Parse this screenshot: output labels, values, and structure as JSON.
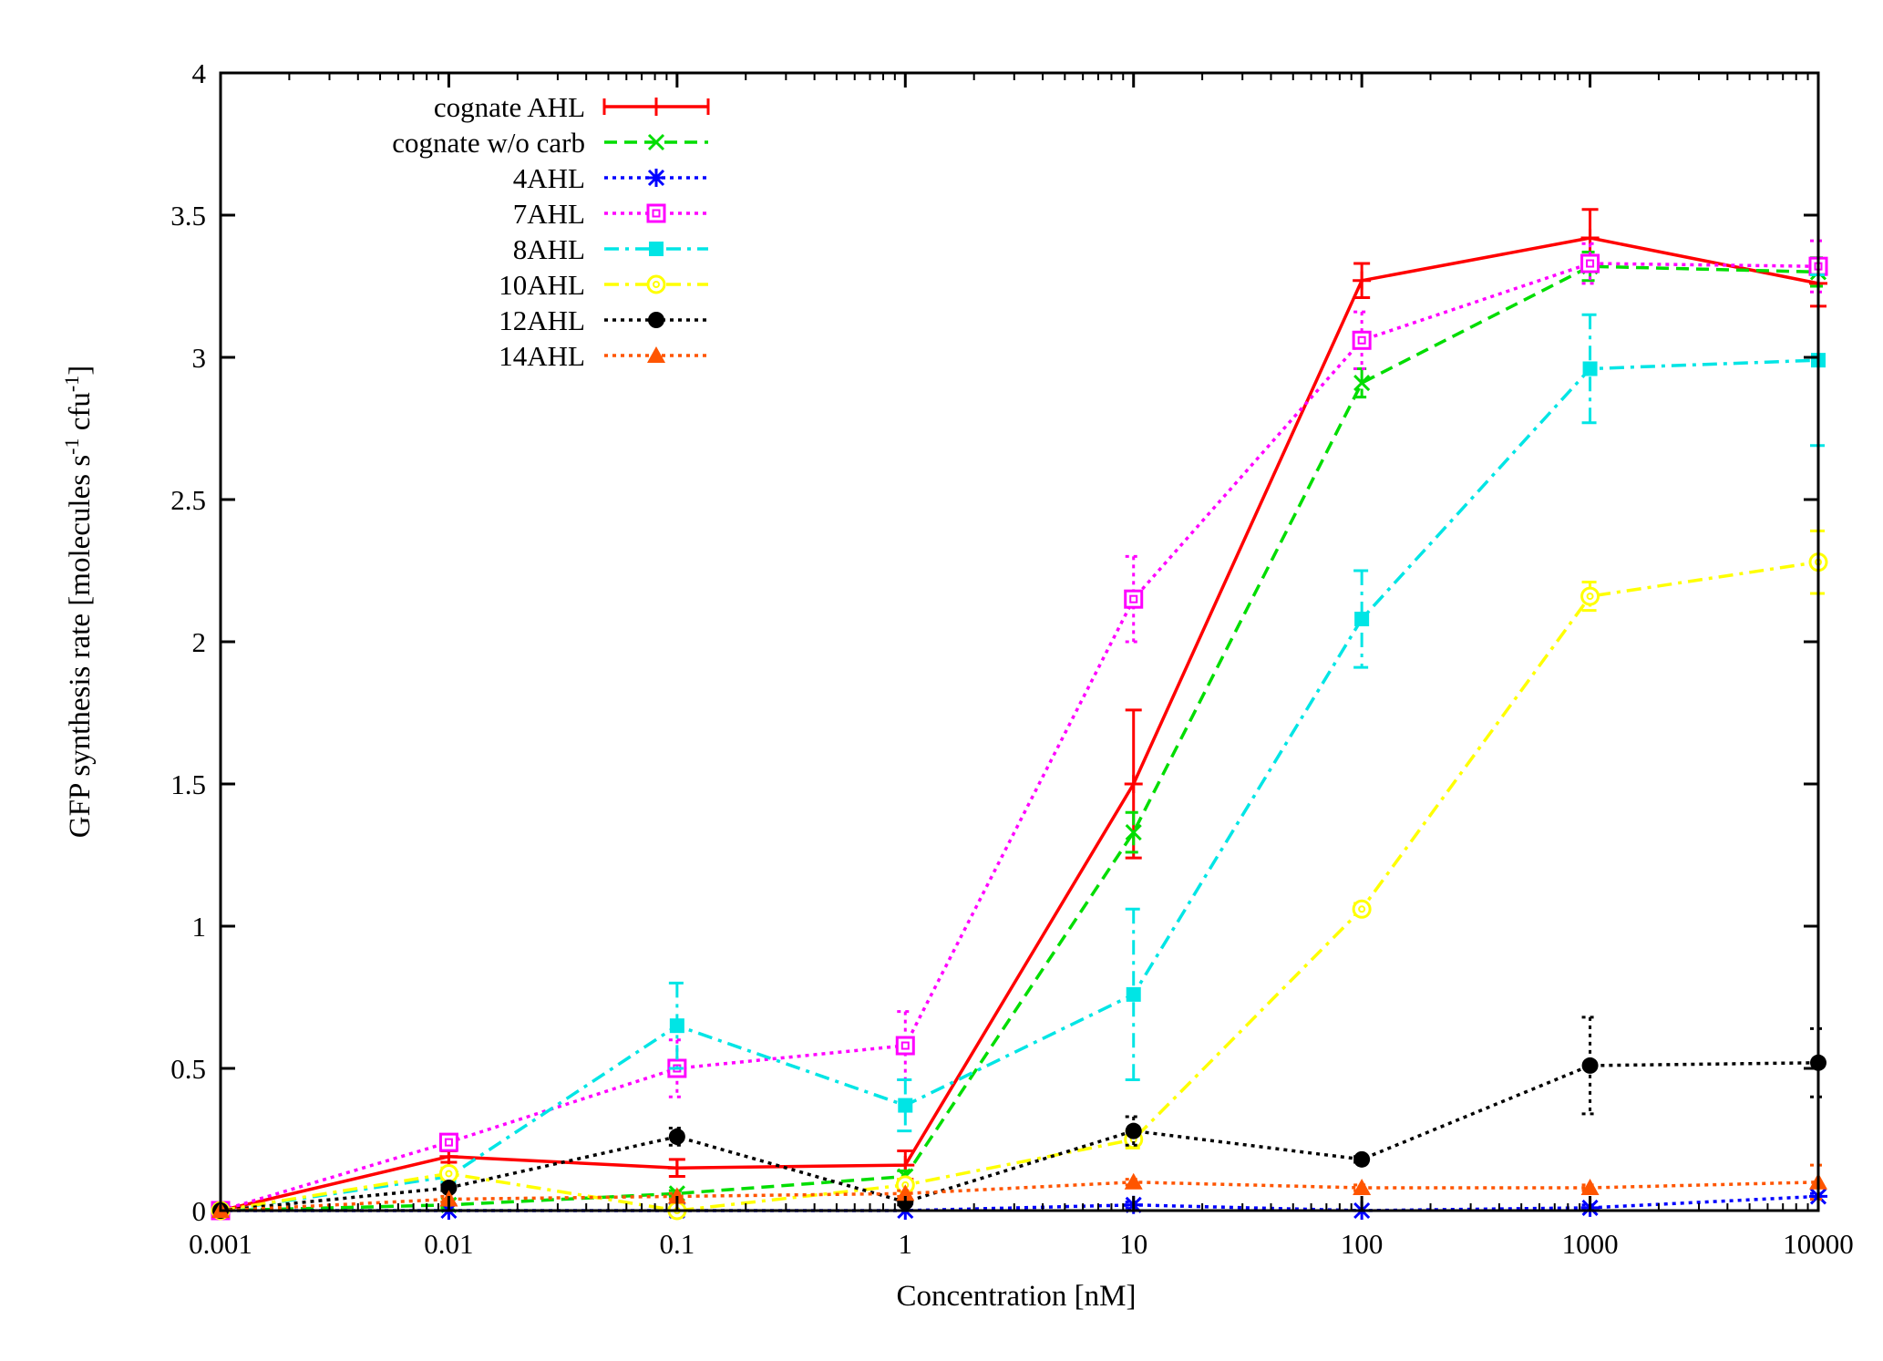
{
  "chart_data": {
    "type": "line",
    "xlabel": "Concentration [nM]",
    "ylabel_main": "GFP synthesis rate [molecules s",
    "ylabel_sup1": "-1",
    "ylabel_mid": " cfu",
    "ylabel_sup2": "-1",
    "ylabel_end": "]",
    "xscale": "log",
    "xlim": [
      0.001,
      10000
    ],
    "ylim": [
      0,
      4
    ],
    "x_ticks": [
      0.001,
      0.01,
      0.1,
      1,
      10,
      100,
      1000,
      10000
    ],
    "x_tick_labels": [
      "0.001",
      "0.01",
      "0.1",
      "1",
      "10",
      "100",
      "1000",
      "10000"
    ],
    "y_ticks": [
      0,
      0.5,
      1,
      1.5,
      2,
      2.5,
      3,
      3.5,
      4
    ],
    "y_tick_labels": [
      "0",
      "0.5",
      "1",
      "1.5",
      "2",
      "2.5",
      "3",
      "3.5",
      "4"
    ],
    "grid": false,
    "legend_position": "top-left",
    "x": [
      0.001,
      0.01,
      0.1,
      1,
      10,
      100,
      1000,
      10000
    ],
    "series": [
      {
        "name": "cognate AHL",
        "color": "#ff0000",
        "dash": "solid",
        "marker": "plus",
        "values": [
          0.0,
          0.19,
          0.15,
          0.16,
          1.5,
          3.27,
          3.42,
          3.26
        ],
        "errors": [
          0.0,
          0.02,
          0.03,
          0.05,
          0.26,
          0.06,
          0.1,
          0.08
        ]
      },
      {
        "name": "cognate w/o carb",
        "color": "#00dd00",
        "dash": "dashed",
        "marker": "x",
        "values": [
          0.0,
          0.02,
          0.06,
          0.12,
          1.33,
          2.91,
          3.32,
          3.3
        ],
        "errors": [
          0.0,
          0.01,
          0.01,
          0.02,
          0.07,
          0.05,
          0.05,
          0.05
        ]
      },
      {
        "name": "4AHL",
        "color": "#0000ff",
        "dash": "dotted",
        "marker": "star",
        "values": [
          0.0,
          0.0,
          0.0,
          0.0,
          0.02,
          0.0,
          0.01,
          0.05
        ],
        "errors": [
          0.0,
          0.0,
          0.0,
          0.0,
          0.01,
          0.0,
          0.01,
          0.01
        ]
      },
      {
        "name": "7AHL",
        "color": "#ff00ff",
        "dash": "dotted",
        "marker": "open-square",
        "values": [
          0.0,
          0.24,
          0.5,
          0.58,
          2.15,
          3.06,
          3.33,
          3.32
        ],
        "errors": [
          0.0,
          0.02,
          0.1,
          0.12,
          0.15,
          0.1,
          0.07,
          0.09
        ]
      },
      {
        "name": "8AHL",
        "color": "#00e5e5",
        "dash": "dashdot",
        "marker": "filled-square",
        "values": [
          0.0,
          0.12,
          0.65,
          0.37,
          0.76,
          2.08,
          2.96,
          2.99
        ],
        "errors": [
          0.0,
          0.02,
          0.15,
          0.09,
          0.3,
          0.17,
          0.19,
          0.3
        ]
      },
      {
        "name": "10AHL",
        "color": "#ffff00",
        "dash": "dashdot",
        "marker": "open-circle",
        "values": [
          0.0,
          0.13,
          0.0,
          0.09,
          0.25,
          1.06,
          2.16,
          2.28
        ],
        "errors": [
          0.0,
          0.02,
          0.01,
          0.02,
          0.03,
          0.02,
          0.05,
          0.11
        ]
      },
      {
        "name": "12AHL",
        "color": "#000000",
        "dash": "dotted",
        "marker": "filled-circle",
        "values": [
          0.0,
          0.08,
          0.26,
          0.03,
          0.28,
          0.18,
          0.51,
          0.52
        ],
        "errors": [
          0.0,
          0.01,
          0.03,
          0.01,
          0.05,
          0.01,
          0.17,
          0.12
        ]
      },
      {
        "name": "14AHL",
        "color": "#ff5500",
        "dash": "dotted",
        "marker": "filled-triangle",
        "values": [
          0.0,
          0.04,
          0.05,
          0.06,
          0.1,
          0.08,
          0.08,
          0.1
        ],
        "errors": [
          0.0,
          0.01,
          0.01,
          0.01,
          0.01,
          0.01,
          0.01,
          0.06
        ]
      }
    ]
  }
}
